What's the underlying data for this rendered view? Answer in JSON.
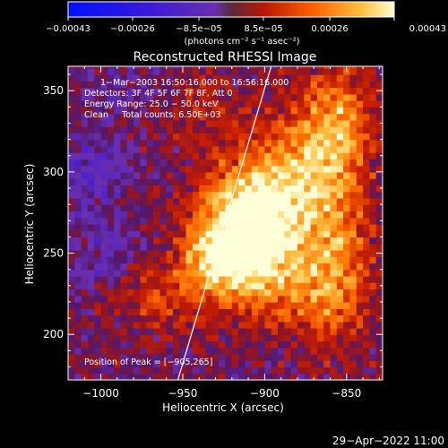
{
  "chart_data": {
    "type": "heatmap",
    "title": "Reconstructed RHESSI Image",
    "xlabel": "Heliocentric X (arcsec)",
    "ylabel": "Heliocentric Y (arcsec)",
    "xlim": [
      -1020,
      -828
    ],
    "ylim": [
      172,
      365
    ],
    "xticks": [
      -1000,
      -950,
      -900,
      -850
    ],
    "xtick_labels": [
      "−1000",
      "−950",
      "−900",
      "−850"
    ],
    "yticks": [
      200,
      250,
      300,
      350
    ],
    "ytick_labels": [
      "200",
      "250",
      "300",
      "350"
    ],
    "colorbar": {
      "min": -0.00043,
      "max": 0.00043,
      "ticks": [
        -0.00043,
        -0.00026,
        -8.5e-05,
        8.5e-05,
        0.00026,
        0.00043
      ],
      "tick_labels": [
        "−0.00043",
        "−0.00026",
        "−8.5e−05",
        "8.5e−05",
        "0.00026",
        "0.00043"
      ],
      "unit_label": "(photons cm⁻² s⁻¹ asec⁻²)"
    },
    "annotations": [
      "1−Mar−2003 16:50:16.000 to 16:56:16.000",
      "Detectors: 3F 4F 5F 6F 7F 8F, Att 0",
      "Energy Range: 25.0 − 50.0 keV",
      "Clean     Total counts: 6.50E+03"
    ],
    "peak": {
      "label": "Position of Peak = [−905,265]",
      "x": -905,
      "y": 265
    },
    "limb_line": [
      [
        -953,
        172
      ],
      [
        -896,
        365
      ]
    ],
    "sources": [
      {
        "x": -910,
        "y": 265,
        "sx": 22,
        "sy": 28,
        "amp": 1.25
      },
      {
        "x": -925,
        "y": 248,
        "sx": 15,
        "sy": 12,
        "amp": 0.55
      },
      {
        "x": -880,
        "y": 300,
        "sx": 18,
        "sy": 30,
        "amp": 0.5
      },
      {
        "x": -855,
        "y": 330,
        "sx": 15,
        "sy": 25,
        "amp": 0.55
      },
      {
        "x": -870,
        "y": 225,
        "sx": 22,
        "sy": 20,
        "amp": 0.4
      },
      {
        "x": -960,
        "y": 225,
        "sx": 25,
        "sy": 15,
        "amp": 0.35
      },
      {
        "x": -855,
        "y": 260,
        "sx": 14,
        "sy": 40,
        "amp": 0.45
      },
      {
        "x": -940,
        "y": 340,
        "sx": 18,
        "sy": 14,
        "amp": 0.25
      },
      {
        "x": -1005,
        "y": 300,
        "sx": 14,
        "sy": 14,
        "amp": -0.35
      },
      {
        "x": -1000,
        "y": 250,
        "sx": 18,
        "sy": 18,
        "amp": -0.2
      },
      {
        "x": -985,
        "y": 350,
        "sx": 18,
        "sy": 14,
        "amp": -0.15
      }
    ]
  },
  "footer": {
    "date": "29−Apr−2022 11:00"
  }
}
